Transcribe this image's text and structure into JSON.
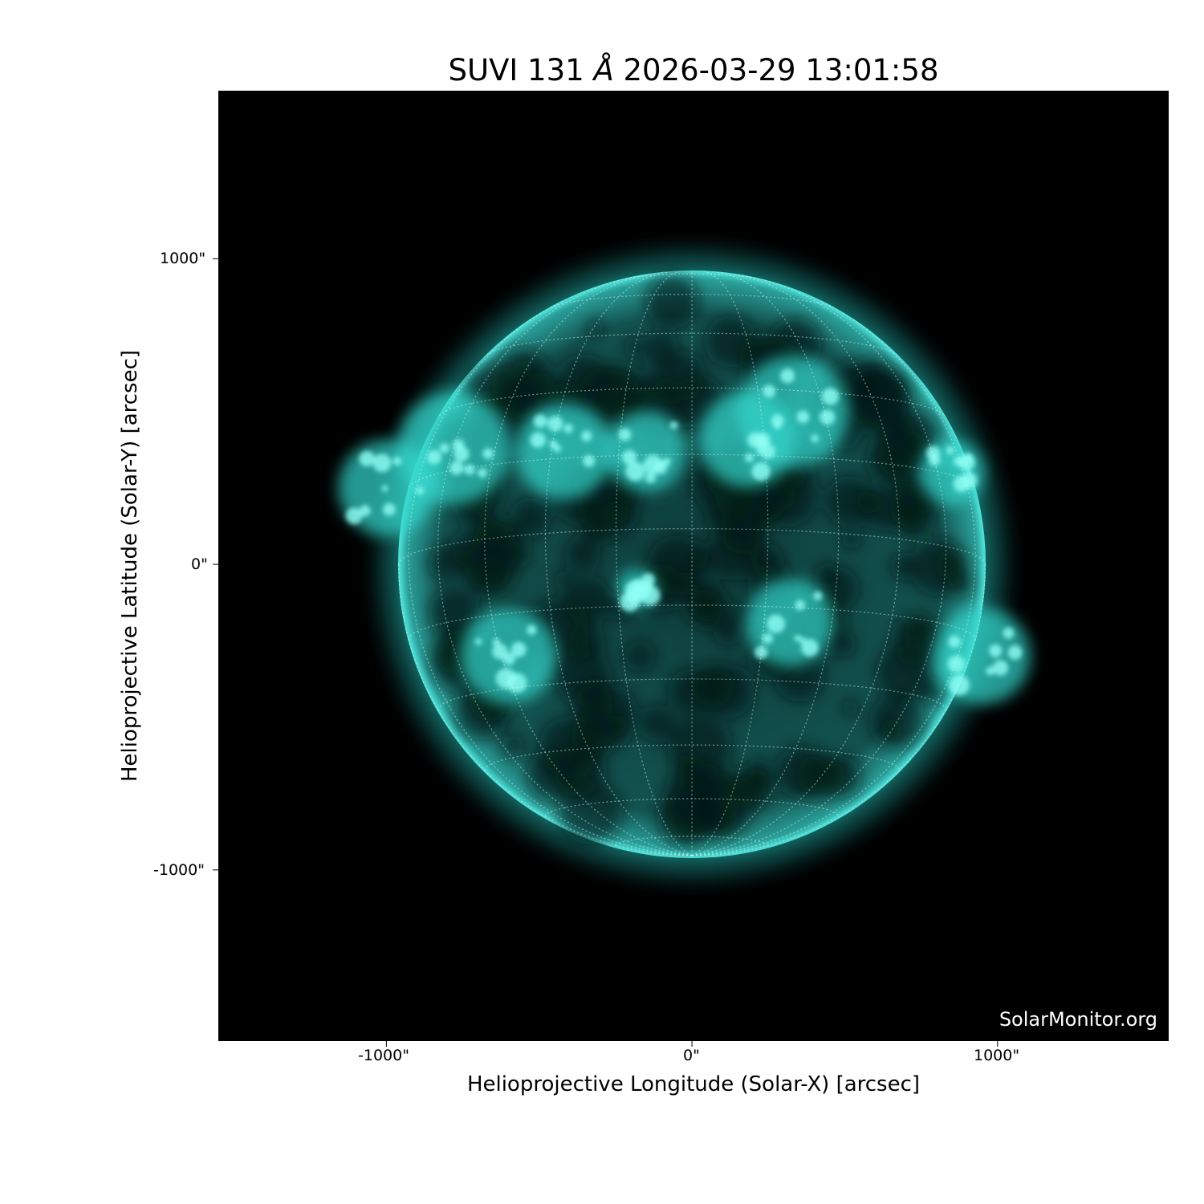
{
  "chart_data": {
    "type": "heatmap",
    "title": "SUVI 131 Å 2026-03-29 13:01:58",
    "title_parts": {
      "prefix": "SUVI 131 ",
      "unit": "Å",
      "datetime": "2026-03-29 13:01:58"
    },
    "xlabel": "Helioprojective Longitude (Solar-X) [arcsec]",
    "ylabel": "Helioprojective Latitude (Solar-Y) [arcsec]",
    "xticks": [
      {
        "value": -1000,
        "label": "-1000\""
      },
      {
        "value": 0,
        "label": "0\""
      },
      {
        "value": 1000,
        "label": "1000\""
      }
    ],
    "yticks": [
      {
        "value": 1000,
        "label": "1000\""
      },
      {
        "value": 0,
        "label": "0\""
      },
      {
        "value": -1000,
        "label": "-1000\""
      }
    ],
    "xlim": [
      -1550,
      1560
    ],
    "ylim": [
      -1560,
      1550
    ],
    "colormap": "black-to-cyan (SUVI 131)",
    "color_accent": "#2ee6dc",
    "background": "#000000",
    "grid": "heliographic lat/lon, dotted, 15° spacing",
    "solar_radius_arcsec": 960
  },
  "watermark": "SolarMonitor.org"
}
